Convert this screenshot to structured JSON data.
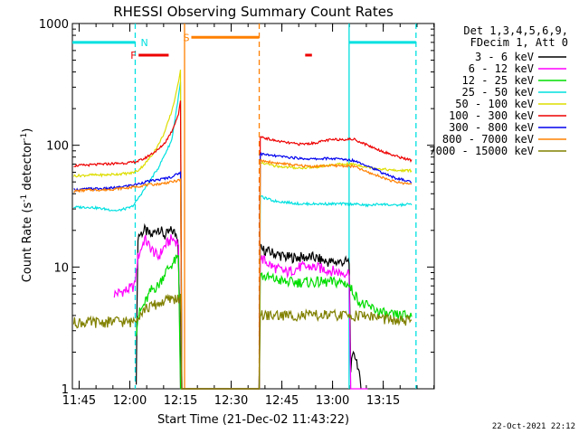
{
  "chart_data": {
    "type": "line",
    "title": "RHESSI Observing Summary Count Rates",
    "xlabel": "Start Time (21-Dec-02 11:43:22)",
    "ylabel_parts": [
      "Count Rate (s",
      "-1",
      " detector",
      "-1",
      ")"
    ],
    "yscale": "log",
    "ylim": [
      1,
      1000
    ],
    "xlim_min": [
      -1.4,
      105.7
    ],
    "x_ticks": [
      {
        "t": 0.6,
        "label": "11:45"
      },
      {
        "t": 15.6,
        "label": "12:00"
      },
      {
        "t": 30.6,
        "label": "12:15"
      },
      {
        "t": 45.6,
        "label": "12:30"
      },
      {
        "t": 60.6,
        "label": "12:45"
      },
      {
        "t": 75.6,
        "label": "13:00"
      },
      {
        "t": 90.6,
        "label": "13:15"
      }
    ],
    "y_ticks": [
      {
        "v": 1,
        "label": "1"
      },
      {
        "v": 10,
        "label": "10"
      },
      {
        "v": 100,
        "label": "100"
      },
      {
        "v": 1000,
        "label": "1000"
      }
    ],
    "legend_header": [
      "Det 1,3,4,5,6,9,",
      "FDecim 1, Att 0"
    ],
    "legend_position": "right",
    "timestamp": "22-Oct-2021 22:12",
    "flags": [
      {
        "label": "N",
        "color": "#00e0e0",
        "segments": [
          [
            -1.4,
            17.2
          ],
          [
            80.5,
            100.3
          ]
        ],
        "level": 700
      },
      {
        "label": "F",
        "color": "#ee0000",
        "segments": [
          [
            18.2,
            27.1
          ],
          [
            67.5,
            69.5
          ]
        ],
        "level": 550
      },
      {
        "label": "S",
        "color": "#ff8000",
        "segments": [
          [
            33.8,
            53.9
          ]
        ],
        "level": 770
      }
    ],
    "vlines": [
      {
        "t": 17.2,
        "color": "#00e0e0",
        "dash": true
      },
      {
        "t": 31.8,
        "color": "#ff8000",
        "dash": false
      },
      {
        "t": 53.9,
        "color": "#ff8000",
        "dash": true
      },
      {
        "t": 80.5,
        "color": "#00e0e0",
        "dash": false
      },
      {
        "t": 100.3,
        "color": "#00e0e0",
        "dash": true
      }
    ],
    "series": [
      {
        "name": "3 - 6 keV",
        "color": "#000000",
        "points": [
          [
            17.5,
            1.2
          ],
          [
            18,
            18
          ],
          [
            20,
            20
          ],
          [
            22,
            18
          ],
          [
            24,
            21
          ],
          [
            26,
            18
          ],
          [
            28,
            20
          ],
          [
            29.8,
            18
          ],
          [
            30.6,
            3
          ],
          [
            30.8,
            1
          ],
          [
            53.9,
            1
          ],
          [
            54.2,
            14
          ],
          [
            58,
            13
          ],
          [
            62,
            12
          ],
          [
            66,
            12
          ],
          [
            70,
            12
          ],
          [
            74,
            11
          ],
          [
            78,
            11
          ],
          [
            80.5,
            11
          ],
          [
            81,
            1.5
          ],
          [
            82,
            2
          ],
          [
            83,
            1.6
          ],
          [
            84,
            1
          ]
        ]
      },
      {
        "name": "6 - 12 keV",
        "color": "#ff00ff",
        "points": [
          [
            11,
            6
          ],
          [
            15,
            6.5
          ],
          [
            17,
            7
          ],
          [
            18,
            12
          ],
          [
            20,
            17
          ],
          [
            22,
            14
          ],
          [
            24,
            12
          ],
          [
            26,
            15
          ],
          [
            28,
            17
          ],
          [
            30,
            16
          ],
          [
            30.6,
            1
          ],
          [
            53.9,
            1
          ],
          [
            54.2,
            12
          ],
          [
            58,
            10
          ],
          [
            62,
            9
          ],
          [
            66,
            10
          ],
          [
            70,
            10
          ],
          [
            74,
            9.5
          ],
          [
            78,
            9
          ],
          [
            80.5,
            9
          ],
          [
            81,
            1
          ],
          [
            86,
            1
          ]
        ]
      },
      {
        "name": "12 - 25 keV",
        "color": "#00dd00",
        "points": [
          [
            17.5,
            3
          ],
          [
            18,
            4
          ],
          [
            20,
            5
          ],
          [
            22,
            6.5
          ],
          [
            24,
            7
          ],
          [
            26,
            9
          ],
          [
            28,
            10.5
          ],
          [
            30,
            12
          ],
          [
            30.6,
            1
          ],
          [
            53.9,
            1
          ],
          [
            54.2,
            8.5
          ],
          [
            58,
            8
          ],
          [
            62,
            7.5
          ],
          [
            66,
            7.5
          ],
          [
            70,
            7.5
          ],
          [
            74,
            7.5
          ],
          [
            78,
            7.5
          ],
          [
            80,
            7.3
          ],
          [
            84,
            5
          ],
          [
            88,
            4.5
          ],
          [
            92,
            4
          ],
          [
            96,
            4
          ],
          [
            99,
            4
          ]
        ]
      },
      {
        "name": "25 - 50 keV",
        "color": "#00e0e0",
        "points": [
          [
            -1,
            31
          ],
          [
            4,
            31
          ],
          [
            8,
            30
          ],
          [
            12,
            29
          ],
          [
            16,
            31
          ],
          [
            17,
            33
          ],
          [
            20,
            44
          ],
          [
            24,
            65
          ],
          [
            28,
            110
          ],
          [
            30,
            250
          ],
          [
            30.6,
            330
          ],
          [
            31,
            1
          ],
          [
            53.9,
            1
          ],
          [
            54.2,
            38
          ],
          [
            58,
            35
          ],
          [
            62,
            34
          ],
          [
            66,
            33
          ],
          [
            70,
            33
          ],
          [
            74,
            33
          ],
          [
            78,
            33
          ],
          [
            82,
            33
          ],
          [
            86,
            32
          ],
          [
            90,
            33
          ],
          [
            94,
            32
          ],
          [
            99,
            33
          ]
        ]
      },
      {
        "name": "50 - 100 keV",
        "color": "#dddd00",
        "points": [
          [
            -1,
            56
          ],
          [
            4,
            57
          ],
          [
            8,
            57
          ],
          [
            12,
            58
          ],
          [
            16,
            59
          ],
          [
            18,
            62
          ],
          [
            20,
            70
          ],
          [
            22,
            82
          ],
          [
            24,
            100
          ],
          [
            26,
            130
          ],
          [
            28,
            190
          ],
          [
            29.5,
            280
          ],
          [
            30.6,
            420
          ],
          [
            31,
            1
          ],
          [
            53.9,
            1
          ],
          [
            54.2,
            72
          ],
          [
            58,
            68
          ],
          [
            62,
            66
          ],
          [
            66,
            65
          ],
          [
            70,
            66
          ],
          [
            74,
            68
          ],
          [
            78,
            70
          ],
          [
            82,
            70
          ],
          [
            86,
            66
          ],
          [
            90,
            64
          ],
          [
            94,
            62
          ],
          [
            99,
            62
          ]
        ]
      },
      {
        "name": "100 - 300 keV",
        "color": "#ee0000",
        "points": [
          [
            -1,
            68
          ],
          [
            4,
            69
          ],
          [
            8,
            70
          ],
          [
            12,
            71
          ],
          [
            16,
            72
          ],
          [
            18,
            74
          ],
          [
            20,
            78
          ],
          [
            22,
            85
          ],
          [
            24,
            92
          ],
          [
            26,
            105
          ],
          [
            28,
            130
          ],
          [
            30,
            180
          ],
          [
            30.6,
            230
          ],
          [
            31,
            1
          ],
          [
            53.9,
            1
          ],
          [
            54.2,
            118
          ],
          [
            58,
            110
          ],
          [
            62,
            105
          ],
          [
            66,
            102
          ],
          [
            70,
            104
          ],
          [
            74,
            110
          ],
          [
            78,
            112
          ],
          [
            82,
            112
          ],
          [
            86,
            100
          ],
          [
            90,
            90
          ],
          [
            94,
            82
          ],
          [
            99,
            75
          ]
        ]
      },
      {
        "name": "300 - 800 keV",
        "color": "#0000ee",
        "points": [
          [
            -1,
            43
          ],
          [
            4,
            44
          ],
          [
            8,
            44
          ],
          [
            12,
            45
          ],
          [
            16,
            47
          ],
          [
            18,
            48
          ],
          [
            20,
            50
          ],
          [
            24,
            52
          ],
          [
            28,
            55
          ],
          [
            30.6,
            60
          ],
          [
            31,
            1
          ],
          [
            53.9,
            1
          ],
          [
            54.2,
            85
          ],
          [
            58,
            82
          ],
          [
            62,
            80
          ],
          [
            66,
            78
          ],
          [
            70,
            77
          ],
          [
            74,
            78
          ],
          [
            78,
            77
          ],
          [
            82,
            75
          ],
          [
            86,
            68
          ],
          [
            90,
            60
          ],
          [
            94,
            54
          ],
          [
            99,
            50
          ]
        ]
      },
      {
        "name": "800 - 7000 keV",
        "color": "#ff8000",
        "points": [
          [
            -1,
            42
          ],
          [
            4,
            43
          ],
          [
            8,
            43
          ],
          [
            12,
            44
          ],
          [
            16,
            45
          ],
          [
            18,
            46
          ],
          [
            20,
            47
          ],
          [
            24,
            48
          ],
          [
            28,
            50
          ],
          [
            30.6,
            52
          ],
          [
            31,
            1
          ],
          [
            53.9,
            1
          ],
          [
            54.2,
            75
          ],
          [
            58,
            72
          ],
          [
            62,
            70
          ],
          [
            66,
            68
          ],
          [
            70,
            67
          ],
          [
            74,
            68
          ],
          [
            78,
            68
          ],
          [
            82,
            67
          ],
          [
            86,
            60
          ],
          [
            90,
            55
          ],
          [
            94,
            50
          ],
          [
            99,
            48
          ]
        ]
      },
      {
        "name": "7000 - 15000 keV",
        "color": "#808000",
        "points": [
          [
            -1,
            3.5
          ],
          [
            4,
            3.5
          ],
          [
            8,
            3.5
          ],
          [
            12,
            3.6
          ],
          [
            16,
            3.5
          ],
          [
            18,
            4
          ],
          [
            20,
            4.5
          ],
          [
            24,
            5
          ],
          [
            28,
            5.5
          ],
          [
            30.6,
            5.5
          ],
          [
            31,
            1
          ],
          [
            53.9,
            1
          ],
          [
            54.2,
            4
          ],
          [
            58,
            4
          ],
          [
            62,
            4
          ],
          [
            66,
            4
          ],
          [
            70,
            4
          ],
          [
            74,
            4
          ],
          [
            78,
            4
          ],
          [
            82,
            4
          ],
          [
            86,
            4
          ],
          [
            90,
            3.8
          ],
          [
            94,
            3.6
          ],
          [
            99,
            3.6
          ]
        ]
      }
    ]
  }
}
